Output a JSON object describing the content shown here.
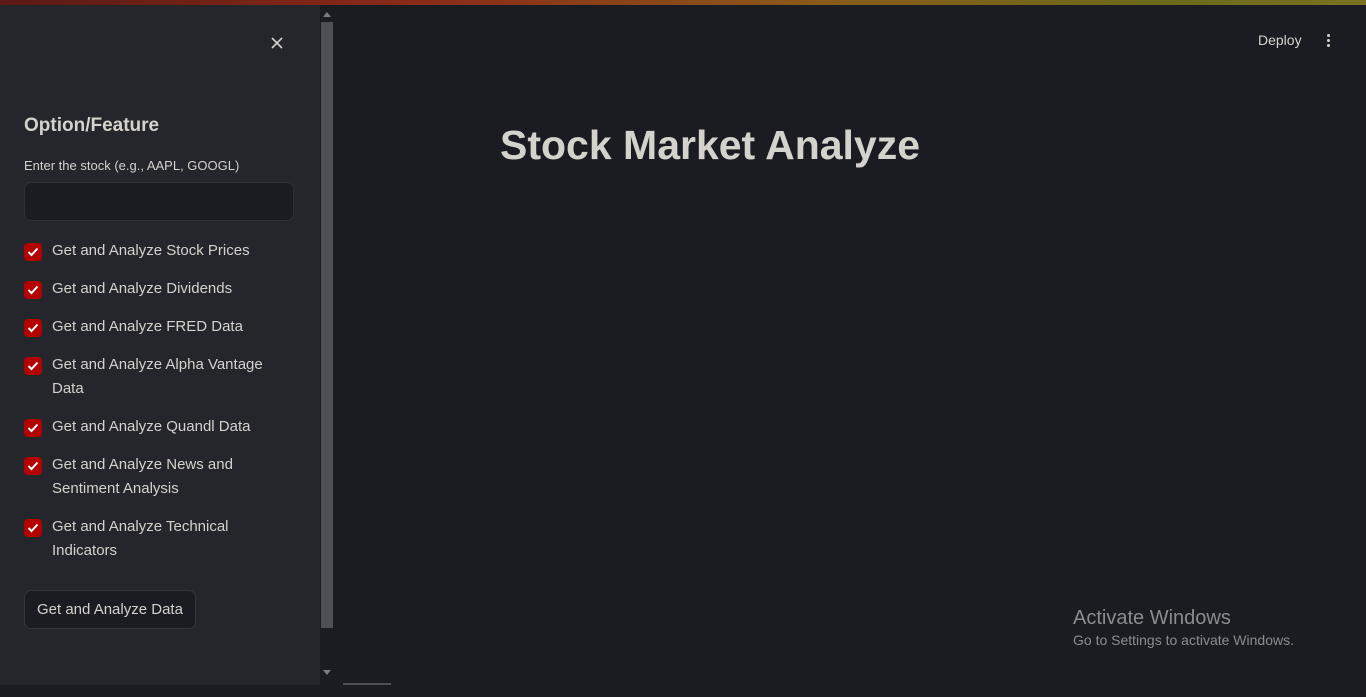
{
  "sidebar": {
    "title": "Option/Feature",
    "stock_input": {
      "label": "Enter the stock (e.g., AAPL, GOOGL)",
      "value": "",
      "placeholder": ""
    },
    "checkboxes": [
      {
        "label": "Get and Analyze Stock Prices",
        "checked": true
      },
      {
        "label": "Get and Analyze Dividends",
        "checked": true
      },
      {
        "label": "Get and Analyze FRED Data",
        "checked": true
      },
      {
        "label": "Get and Analyze Alpha Vantage Data",
        "checked": true
      },
      {
        "label": "Get and Analyze Quandl Data",
        "checked": true
      },
      {
        "label": "Get and Analyze News and Sentiment Analysis",
        "checked": true
      },
      {
        "label": "Get and Analyze Technical Indicators",
        "checked": true
      }
    ],
    "submit_label": "Get and Analyze Data",
    "close_icon": "close-icon"
  },
  "header": {
    "deploy_label": "Deploy",
    "menu_icon": "kebab-menu-icon"
  },
  "main": {
    "title": "Stock Market Analyze"
  },
  "watermark": {
    "title": "Activate Windows",
    "subtitle": "Go to Settings to activate Windows."
  },
  "colors": {
    "background": "#1b1c21",
    "sidebar": "#25262b",
    "checkbox": "#b30000",
    "text": "#d4d2cc"
  }
}
